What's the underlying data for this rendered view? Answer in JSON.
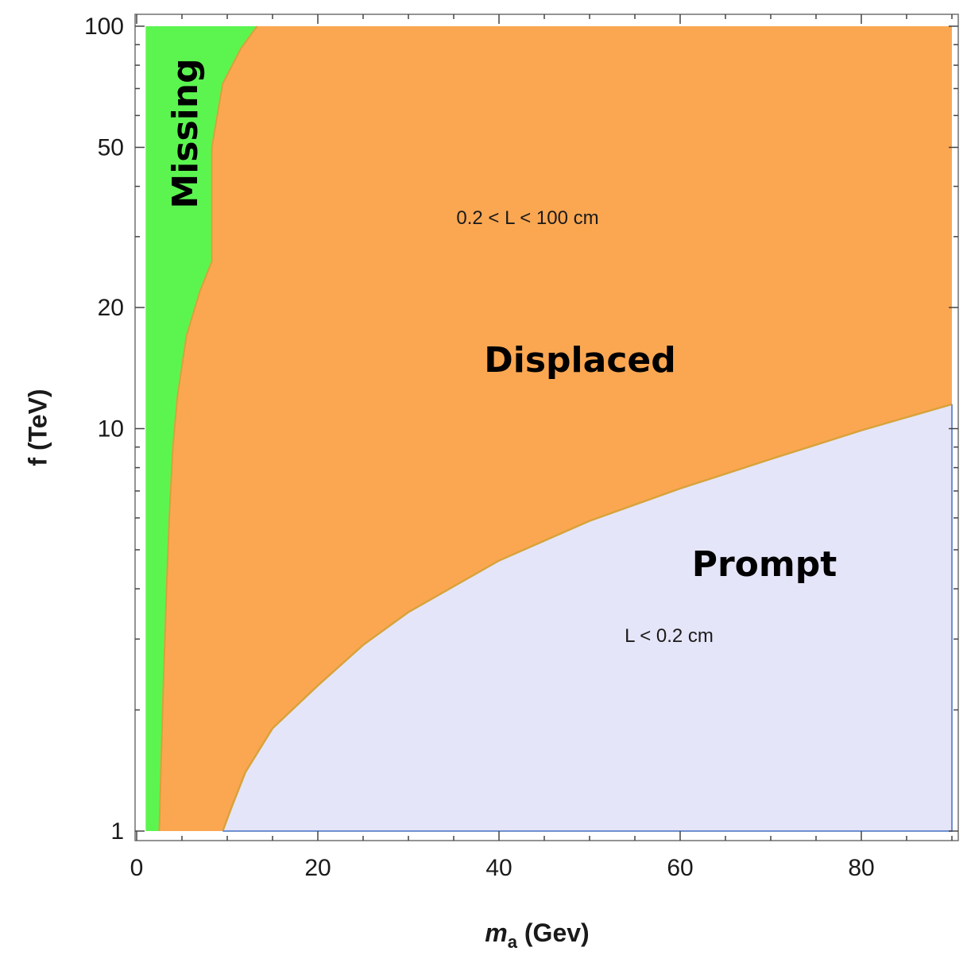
{
  "chart_data": {
    "type": "area",
    "xlabel_main": "m",
    "xlabel_sub": "a",
    "xlabel_unit": " (Gev)",
    "ylabel": "f (TeV)",
    "xlim": [
      0,
      90
    ],
    "ylim": [
      1,
      100
    ],
    "yscale": "log",
    "x_ticks": [
      0,
      20,
      40,
      60,
      80
    ],
    "x_tick_labels": [
      "0",
      "20",
      "40",
      "60",
      "80"
    ],
    "y_ticks": [
      1,
      10,
      20,
      50,
      100
    ],
    "y_tick_labels": [
      "1",
      "10",
      "20",
      "50",
      "100"
    ],
    "grid": false,
    "colors": {
      "missing": "#5cf550",
      "displaced": "#fba752",
      "prompt": "#e5e5f9",
      "prompt_edge": "#6f8fd0",
      "boundary": "#d9a23a"
    },
    "regions": [
      {
        "name": "Missing",
        "note": "",
        "fill": "#5cf550",
        "boundary_right": [
          {
            "x": 2.5,
            "y": 1
          },
          {
            "x": 2.7,
            "y": 1.5
          },
          {
            "x": 3.0,
            "y": 2.5
          },
          {
            "x": 3.3,
            "y": 4
          },
          {
            "x": 3.6,
            "y": 6
          },
          {
            "x": 4.0,
            "y": 9
          },
          {
            "x": 4.5,
            "y": 12
          },
          {
            "x": 5.5,
            "y": 17
          },
          {
            "x": 7.0,
            "y": 22
          },
          {
            "x": 8.3,
            "y": 26
          },
          {
            "x": 8.3,
            "y": 50
          },
          {
            "x": 9.5,
            "y": 72
          },
          {
            "x": 11.5,
            "y": 88
          },
          {
            "x": 13.3,
            "y": 100
          }
        ]
      },
      {
        "name": "Displaced",
        "note": "0.2 < L < 100 cm",
        "fill": "#fba752"
      },
      {
        "name": "Prompt",
        "note": "L < 0.2 cm",
        "fill": "#e5e5f9",
        "boundary_top": [
          {
            "x": 9.5,
            "y": 1.0
          },
          {
            "x": 10.5,
            "y": 1.15
          },
          {
            "x": 12,
            "y": 1.4
          },
          {
            "x": 15,
            "y": 1.8
          },
          {
            "x": 20,
            "y": 2.3
          },
          {
            "x": 25,
            "y": 2.9
          },
          {
            "x": 30,
            "y": 3.5
          },
          {
            "x": 40,
            "y": 4.7
          },
          {
            "x": 50,
            "y": 5.9
          },
          {
            "x": 60,
            "y": 7.1
          },
          {
            "x": 70,
            "y": 8.4
          },
          {
            "x": 80,
            "y": 9.9
          },
          {
            "x": 90,
            "y": 11.5
          }
        ]
      }
    ]
  }
}
